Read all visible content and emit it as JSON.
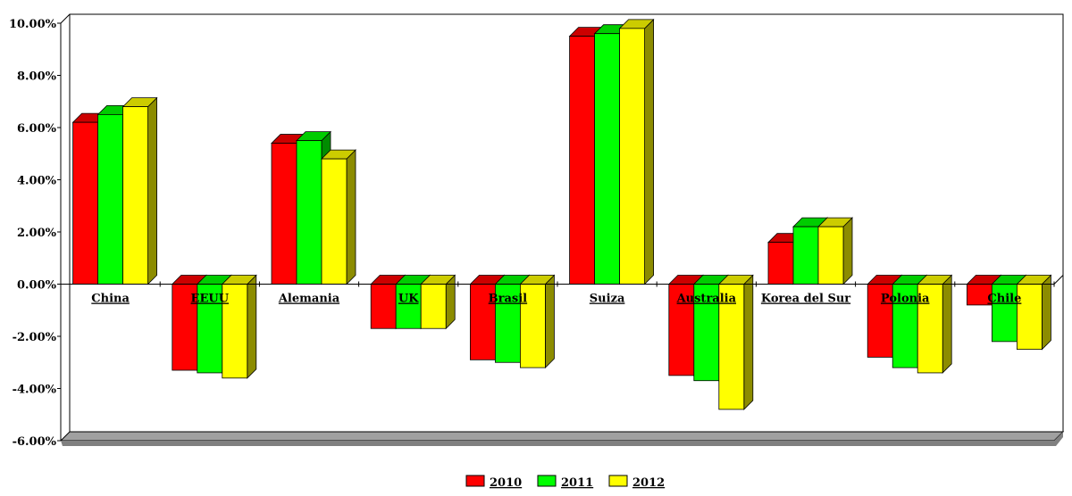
{
  "chart_data": {
    "type": "bar",
    "categories": [
      "China",
      "EEUU",
      "Alemania",
      "UK",
      "Brasil",
      "Suiza",
      "Australia",
      "Korea del Sur",
      "Polonia",
      "Chile"
    ],
    "series": [
      {
        "name": "2010",
        "color": "#ff0000",
        "values": [
          6.2,
          -3.3,
          5.4,
          -1.7,
          -2.9,
          9.5,
          -3.5,
          1.6,
          -2.8,
          -0.8
        ]
      },
      {
        "name": "2011",
        "color": "#00ff00",
        "values": [
          6.5,
          -3.4,
          5.5,
          -1.7,
          -3.0,
          9.6,
          -3.7,
          2.2,
          -3.2,
          -2.2
        ]
      },
      {
        "name": "2012",
        "color": "#ffff00",
        "values": [
          6.8,
          -3.6,
          4.8,
          -1.7,
          -3.2,
          9.8,
          -4.8,
          2.2,
          -3.4,
          -2.5
        ]
      }
    ],
    "yticks": [
      "10.00%",
      "8.00%",
      "6.00%",
      "4.00%",
      "2.00%",
      "0.00%",
      "-2.00%",
      "-4.00%",
      "-6.00%"
    ],
    "ylim": [
      -6,
      10
    ],
    "legend_position": "bottom-center",
    "grid": false
  }
}
